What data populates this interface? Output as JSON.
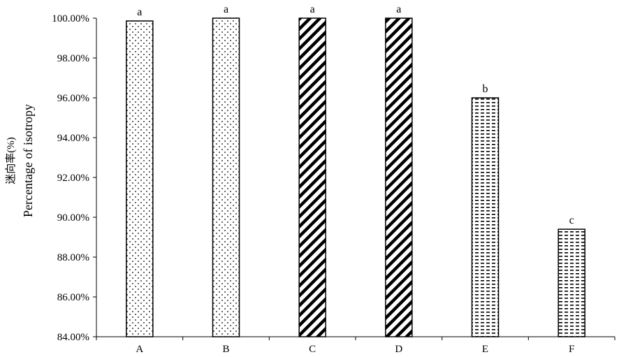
{
  "chart_data": {
    "type": "bar",
    "y_label": "迷向率(%)",
    "y_label_en": "Percentage of isotropy",
    "categories": [
      "A",
      "B",
      "C",
      "D",
      "E",
      "F"
    ],
    "values": [
      99.86,
      100,
      100,
      100,
      96.0,
      89.4
    ],
    "annotations": [
      "a",
      "a",
      "a",
      "a",
      "b",
      "c"
    ],
    "patterns": [
      "dots",
      "dots",
      "diagonal",
      "diagonal",
      "dashes",
      "dashes"
    ],
    "ylim": [
      84,
      100
    ],
    "yticks": [
      {
        "value": 84,
        "label": "84.00%"
      },
      {
        "value": 86,
        "label": "86.00%"
      },
      {
        "value": 88,
        "label": "88.00%"
      },
      {
        "value": 90,
        "label": "90.00%"
      },
      {
        "value": 92,
        "label": "92.00%"
      },
      {
        "value": 94,
        "label": "94.00%"
      },
      {
        "value": 96,
        "label": "96.00%"
      },
      {
        "value": 98,
        "label": "98.00%"
      },
      {
        "value": 100,
        "label": "100.00%"
      }
    ],
    "grid": false
  }
}
